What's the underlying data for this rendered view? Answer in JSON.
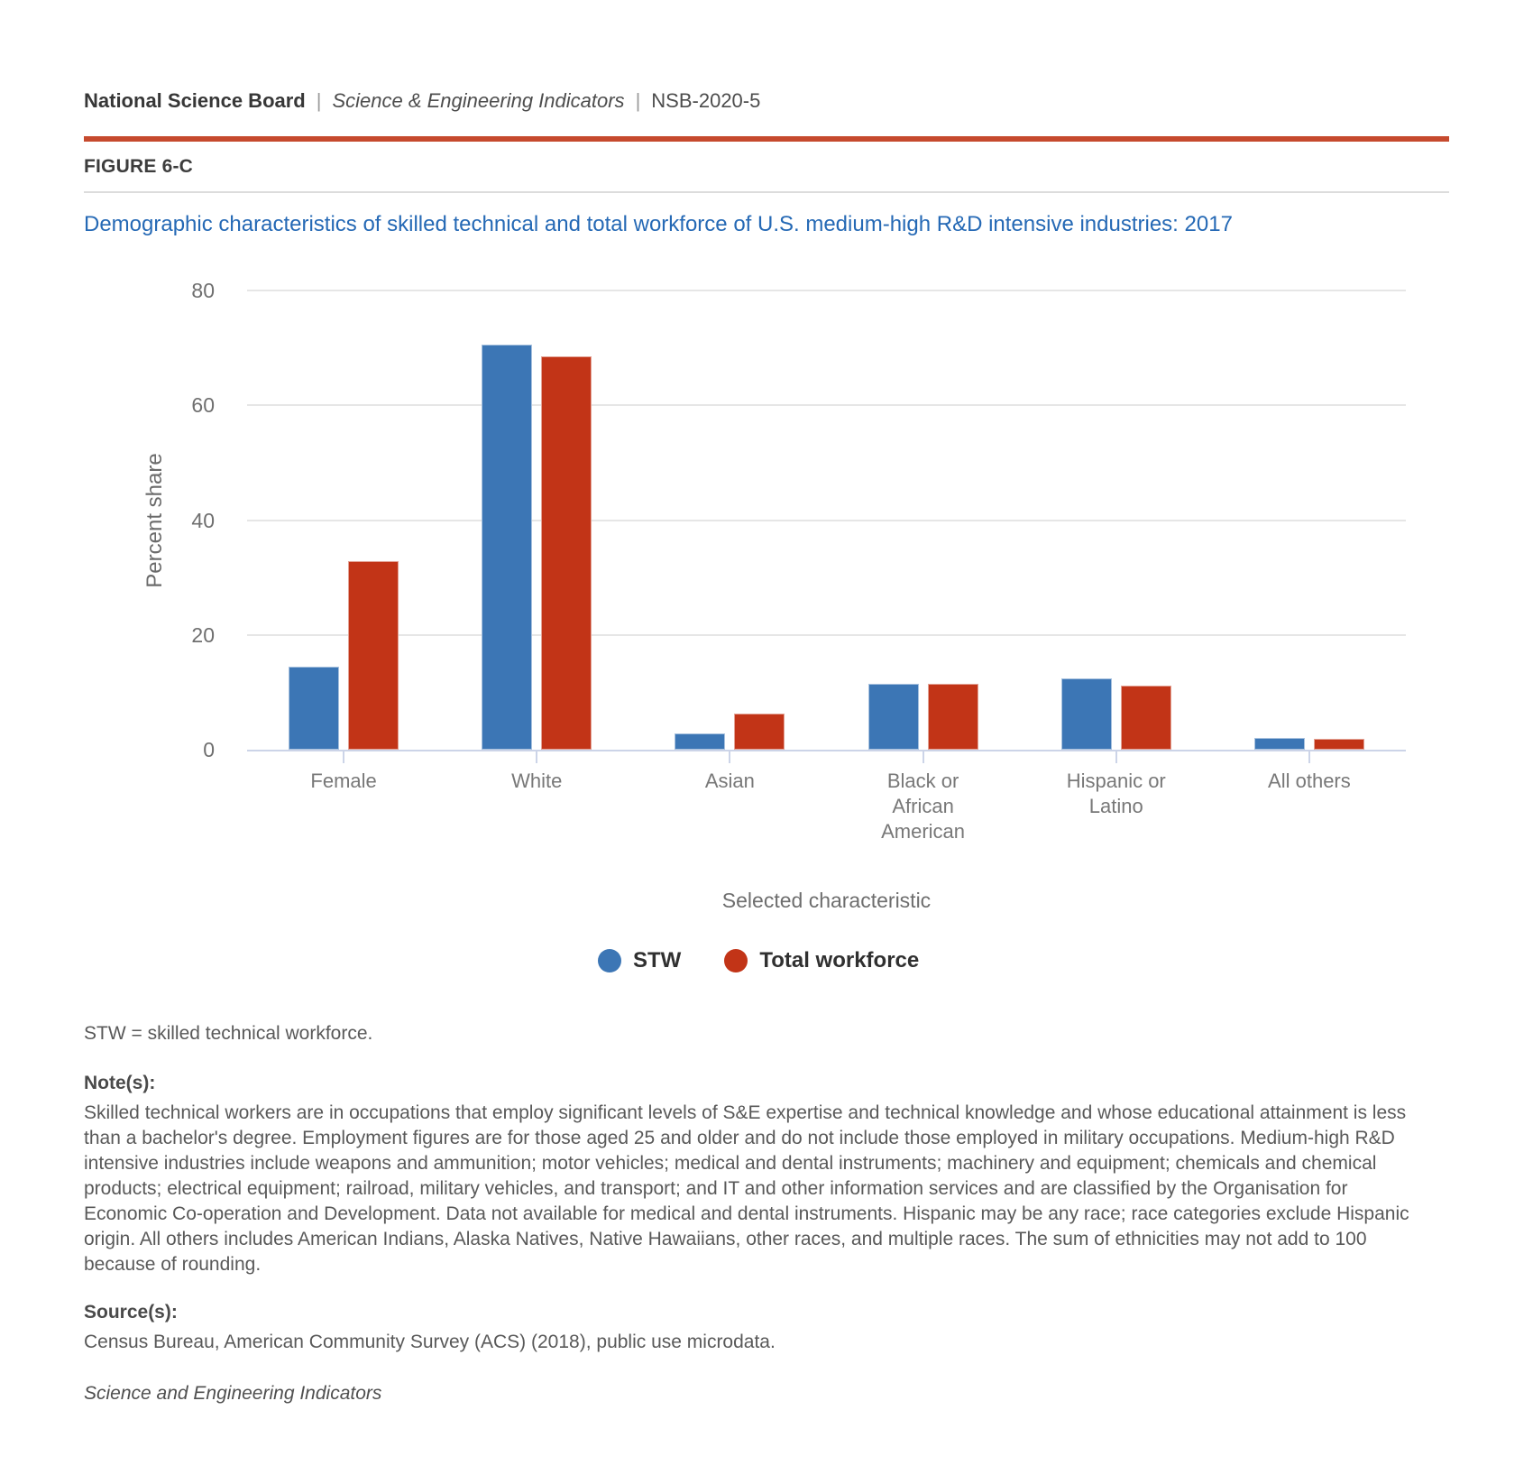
{
  "header": {
    "org": "National Science Board",
    "separator": "|",
    "publication": "Science & Engineering Indicators",
    "report_id": "NSB-2020-5"
  },
  "figure": {
    "label": "FIGURE 6-C"
  },
  "chart_data": {
    "type": "bar",
    "title": "Demographic characteristics of skilled technical and total workforce of U.S. medium-high R&D intensive industries: 2017",
    "categories": [
      "Female",
      "White",
      "Asian",
      "Black or African American",
      "Hispanic or Latino",
      "All others"
    ],
    "category_label_lines": [
      [
        "Female"
      ],
      [
        "White"
      ],
      [
        "Asian"
      ],
      [
        "Black or",
        "African",
        "American"
      ],
      [
        "Hispanic or",
        "Latino"
      ],
      [
        "All others"
      ]
    ],
    "series": [
      {
        "name": "STW",
        "color": "#3c76b5",
        "values": [
          14.5,
          70.5,
          2.9,
          11.5,
          12.4,
          2.0
        ]
      },
      {
        "name": "Total workforce",
        "color": "#c23417",
        "values": [
          32.8,
          68.5,
          6.3,
          11.5,
          11.2,
          1.9
        ]
      }
    ],
    "xlabel": "Selected characteristic",
    "ylabel": "Percent share",
    "ylim": [
      0,
      80
    ],
    "yticks": [
      80,
      60,
      40,
      20,
      0
    ],
    "grid": true,
    "legend_position": "bottom"
  },
  "notes": {
    "abbreviation": "STW = skilled technical workforce.",
    "notes_heading": "Note(s):",
    "notes_text": "Skilled technical workers are in occupations that employ significant levels of S&E expertise and technical knowledge and whose educational attainment is less than a bachelor's degree. Employment figures are for those aged 25 and older and do not include those employed in military occupations. Medium-high R&D intensive industries include weapons and ammunition; motor vehicles; medical and dental instruments; machinery and equipment; chemicals and chemical products; electrical equipment; railroad, military vehicles, and transport; and IT and other information services and are classified by the Organisation for Economic Co-operation and Development. Data not available for medical and dental instruments. Hispanic may be any race; race categories exclude Hispanic origin. All others includes American Indians, Alaska Natives, Native Hawaiians, other races, and multiple races. The sum of ethnicities may not add to 100 because of rounding.",
    "sources_heading": "Source(s):",
    "sources_text": "Census Bureau, American Community Survey (ACS) (2018), public use microdata.",
    "footer": "Science and Engineering Indicators"
  },
  "colors": {
    "accent_rule": "#c64a2e",
    "title": "#2569b5",
    "stw_bar": "#3c76b5",
    "total_workforce_bar": "#c23417",
    "axis_line": "#ccd4e8",
    "gridline": "#e6e6e6"
  }
}
